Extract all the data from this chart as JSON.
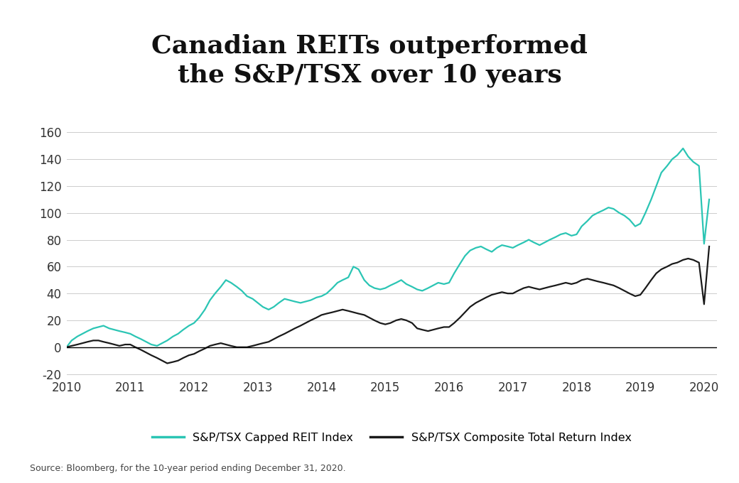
{
  "title_line1": "Canadian REITs outperformed",
  "title_line2": "the S&P/TSX over 10 years",
  "source_text": "Source: Bloomberg, for the 10-year period ending December 31, 2020.",
  "legend_reit": "S&P/TSX Capped REIT Index",
  "legend_tsx": "S&P/TSX Composite Total Return Index",
  "reit_color": "#2BC5B4",
  "tsx_color": "#1a1a1a",
  "background_color": "#ffffff",
  "ylim": [
    -22,
    165
  ],
  "yticks": [
    -20,
    0,
    20,
    40,
    60,
    80,
    100,
    120,
    140,
    160
  ],
  "xlim_start": 2010.0,
  "xlim_end": 2020.2,
  "xtick_years": [
    2010,
    2011,
    2012,
    2013,
    2014,
    2015,
    2016,
    2017,
    2018,
    2019,
    2020
  ],
  "reit_x": [
    2010.0,
    2010.08,
    2010.17,
    2010.25,
    2010.33,
    2010.42,
    2010.5,
    2010.58,
    2010.67,
    2010.75,
    2010.83,
    2010.92,
    2011.0,
    2011.08,
    2011.17,
    2011.25,
    2011.33,
    2011.42,
    2011.5,
    2011.58,
    2011.67,
    2011.75,
    2011.83,
    2011.92,
    2012.0,
    2012.08,
    2012.17,
    2012.25,
    2012.33,
    2012.42,
    2012.5,
    2012.58,
    2012.67,
    2012.75,
    2012.83,
    2012.92,
    2013.0,
    2013.08,
    2013.17,
    2013.25,
    2013.33,
    2013.42,
    2013.5,
    2013.58,
    2013.67,
    2013.75,
    2013.83,
    2013.92,
    2014.0,
    2014.08,
    2014.17,
    2014.25,
    2014.33,
    2014.42,
    2014.5,
    2014.58,
    2014.67,
    2014.75,
    2014.83,
    2014.92,
    2015.0,
    2015.08,
    2015.17,
    2015.25,
    2015.33,
    2015.42,
    2015.5,
    2015.58,
    2015.67,
    2015.75,
    2015.83,
    2015.92,
    2016.0,
    2016.08,
    2016.17,
    2016.25,
    2016.33,
    2016.42,
    2016.5,
    2016.58,
    2016.67,
    2016.75,
    2016.83,
    2016.92,
    2017.0,
    2017.08,
    2017.17,
    2017.25,
    2017.33,
    2017.42,
    2017.5,
    2017.58,
    2017.67,
    2017.75,
    2017.83,
    2017.92,
    2018.0,
    2018.08,
    2018.17,
    2018.25,
    2018.33,
    2018.42,
    2018.5,
    2018.58,
    2018.67,
    2018.75,
    2018.83,
    2018.92,
    2019.0,
    2019.08,
    2019.17,
    2019.25,
    2019.33,
    2019.42,
    2019.5,
    2019.58,
    2019.67,
    2019.75,
    2019.83,
    2019.92,
    2020.0,
    2020.08
  ],
  "reit_y": [
    0,
    5,
    8,
    10,
    12,
    14,
    15,
    16,
    14,
    13,
    12,
    11,
    10,
    8,
    6,
    4,
    2,
    1,
    3,
    5,
    8,
    10,
    13,
    16,
    18,
    22,
    28,
    35,
    40,
    45,
    50,
    48,
    45,
    42,
    38,
    36,
    33,
    30,
    28,
    30,
    33,
    36,
    35,
    34,
    33,
    34,
    35,
    37,
    38,
    40,
    44,
    48,
    50,
    52,
    60,
    58,
    50,
    46,
    44,
    43,
    44,
    46,
    48,
    50,
    47,
    45,
    43,
    42,
    44,
    46,
    48,
    47,
    48,
    55,
    62,
    68,
    72,
    74,
    75,
    73,
    71,
    74,
    76,
    75,
    74,
    76,
    78,
    80,
    78,
    76,
    78,
    80,
    82,
    84,
    85,
    83,
    84,
    90,
    94,
    98,
    100,
    102,
    104,
    103,
    100,
    98,
    95,
    90,
    92,
    100,
    110,
    120,
    130,
    135,
    140,
    143,
    148,
    142,
    138,
    135,
    77,
    110
  ],
  "tsx_x": [
    2010.0,
    2010.08,
    2010.17,
    2010.25,
    2010.33,
    2010.42,
    2010.5,
    2010.58,
    2010.67,
    2010.75,
    2010.83,
    2010.92,
    2011.0,
    2011.08,
    2011.17,
    2011.25,
    2011.33,
    2011.42,
    2011.5,
    2011.58,
    2011.67,
    2011.75,
    2011.83,
    2011.92,
    2012.0,
    2012.08,
    2012.17,
    2012.25,
    2012.33,
    2012.42,
    2012.5,
    2012.58,
    2012.67,
    2012.75,
    2012.83,
    2012.92,
    2013.0,
    2013.08,
    2013.17,
    2013.25,
    2013.33,
    2013.42,
    2013.5,
    2013.58,
    2013.67,
    2013.75,
    2013.83,
    2013.92,
    2014.0,
    2014.08,
    2014.17,
    2014.25,
    2014.33,
    2014.42,
    2014.5,
    2014.58,
    2014.67,
    2014.75,
    2014.83,
    2014.92,
    2015.0,
    2015.08,
    2015.17,
    2015.25,
    2015.33,
    2015.42,
    2015.5,
    2015.58,
    2015.67,
    2015.75,
    2015.83,
    2015.92,
    2016.0,
    2016.08,
    2016.17,
    2016.25,
    2016.33,
    2016.42,
    2016.5,
    2016.58,
    2016.67,
    2016.75,
    2016.83,
    2016.92,
    2017.0,
    2017.08,
    2017.17,
    2017.25,
    2017.33,
    2017.42,
    2017.5,
    2017.58,
    2017.67,
    2017.75,
    2017.83,
    2017.92,
    2018.0,
    2018.08,
    2018.17,
    2018.25,
    2018.33,
    2018.42,
    2018.5,
    2018.58,
    2018.67,
    2018.75,
    2018.83,
    2018.92,
    2019.0,
    2019.08,
    2019.17,
    2019.25,
    2019.33,
    2019.42,
    2019.5,
    2019.58,
    2019.67,
    2019.75,
    2019.83,
    2019.92,
    2020.0,
    2020.08
  ],
  "tsx_y": [
    0,
    1,
    2,
    3,
    4,
    5,
    5,
    4,
    3,
    2,
    1,
    2,
    2,
    0,
    -2,
    -4,
    -6,
    -8,
    -10,
    -12,
    -11,
    -10,
    -8,
    -6,
    -5,
    -3,
    -1,
    1,
    2,
    3,
    2,
    1,
    0,
    0,
    0,
    1,
    2,
    3,
    4,
    6,
    8,
    10,
    12,
    14,
    16,
    18,
    20,
    22,
    24,
    25,
    26,
    27,
    28,
    27,
    26,
    25,
    24,
    22,
    20,
    18,
    17,
    18,
    20,
    21,
    20,
    18,
    14,
    13,
    12,
    13,
    14,
    15,
    15,
    18,
    22,
    26,
    30,
    33,
    35,
    37,
    39,
    40,
    41,
    40,
    40,
    42,
    44,
    45,
    44,
    43,
    44,
    45,
    46,
    47,
    48,
    47,
    48,
    50,
    51,
    50,
    49,
    48,
    47,
    46,
    44,
    42,
    40,
    38,
    39,
    44,
    50,
    55,
    58,
    60,
    62,
    63,
    65,
    66,
    65,
    63,
    32,
    75
  ]
}
